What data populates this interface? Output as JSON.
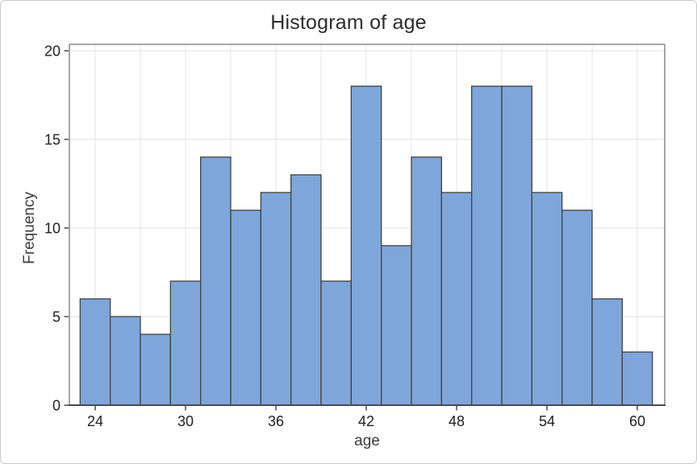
{
  "window": {
    "background": "#ffffff",
    "border_color": "#c9c9c9"
  },
  "chart_data": {
    "type": "bar",
    "subtype": "histogram",
    "title": "Histogram of age",
    "xlabel": "age",
    "ylabel": "Frequency",
    "bin_start": 23,
    "bin_width": 2,
    "bin_edges": [
      23,
      25,
      27,
      29,
      31,
      33,
      35,
      37,
      39,
      41,
      43,
      45,
      47,
      49,
      51,
      53,
      55,
      57,
      59,
      61
    ],
    "frequencies": [
      6,
      5,
      4,
      7,
      14,
      11,
      12,
      13,
      7,
      18,
      9,
      14,
      12,
      18,
      18,
      12,
      11,
      6,
      3
    ],
    "x_ticks": [
      24,
      30,
      36,
      42,
      48,
      54,
      60
    ],
    "y_ticks": [
      0,
      5,
      10,
      15,
      20
    ],
    "xlim": [
      22.3,
      61.8
    ],
    "ylim": [
      0,
      20.4
    ],
    "grid": {
      "vertical_step": 3,
      "horizontal_step": 5,
      "color": "#e8e8e8"
    },
    "legend": "none",
    "colors": {
      "bar_fill": "#7EA6DB",
      "bar_stroke": "#404040",
      "axis": "#4a4a4a",
      "frame": "#757575",
      "tick_label": "#1f1f1f",
      "title_text": "#2d2d2d",
      "axis_title_text": "#3d3d3d"
    }
  }
}
